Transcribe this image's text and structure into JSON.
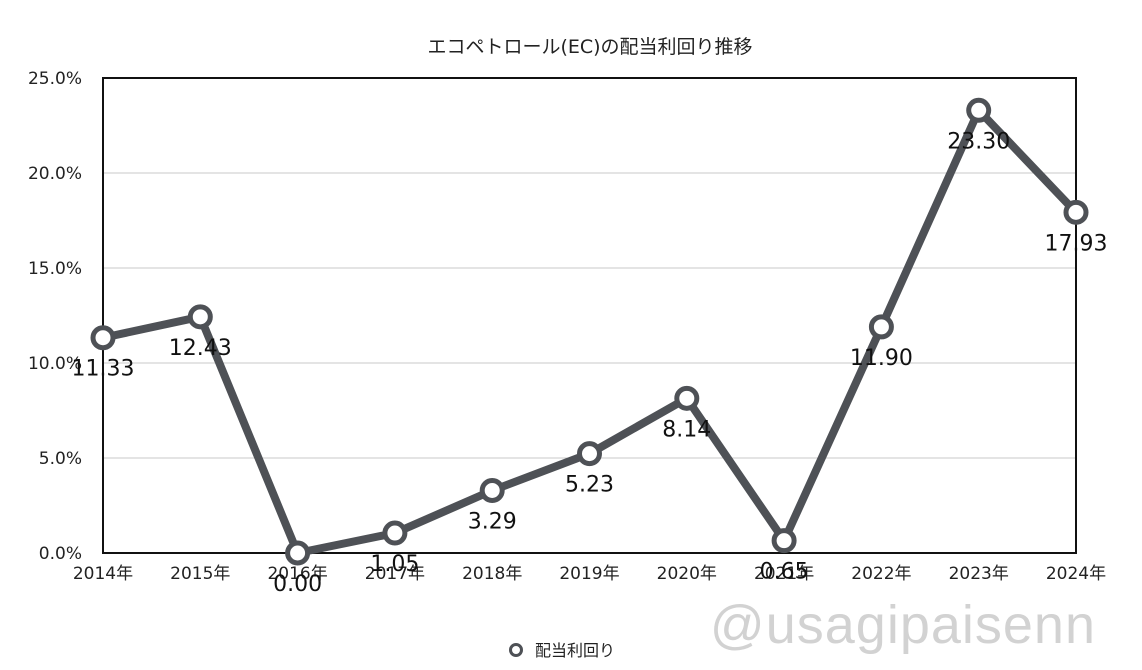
{
  "chart_data": {
    "type": "line",
    "title": "エコペトロール(EC)の配当利回り推移",
    "categories": [
      "2014年",
      "2015年",
      "2016年",
      "2017年",
      "2018年",
      "2019年",
      "2020年",
      "2021年",
      "2022年",
      "2023年",
      "2024年"
    ],
    "series": [
      {
        "name": "配当利回り",
        "values": [
          11.33,
          12.43,
          0.0,
          1.05,
          3.29,
          5.23,
          8.14,
          0.65,
          11.9,
          23.3,
          17.93
        ],
        "labels": [
          "11.33",
          "12.43",
          "0.00",
          "1.05",
          "3.29",
          "5.23",
          "8.14",
          "0.65",
          "11.90",
          "23.30",
          "17.93"
        ],
        "color": "#4e5156"
      }
    ],
    "ylim": [
      0,
      25
    ],
    "yticks": [
      "0.0%",
      "5.0%",
      "10.0%",
      "15.0%",
      "20.0%",
      "25.0%"
    ],
    "grid": true,
    "legend": "bottom-center"
  },
  "watermark": "@usagipaisenn"
}
